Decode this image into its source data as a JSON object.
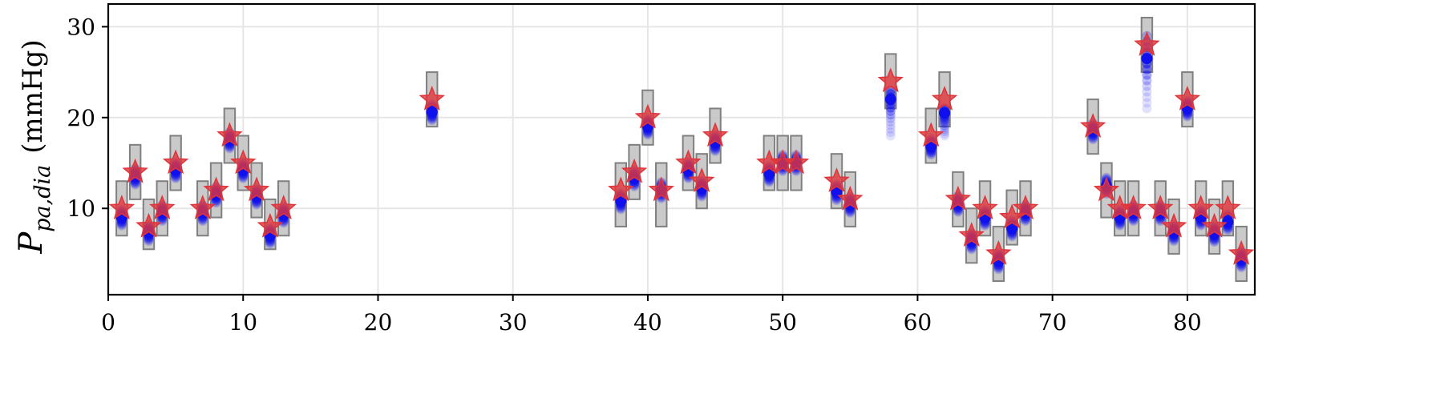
{
  "chart_data": {
    "type": "scatter",
    "ylabel": "P_{pa,dia} (mmHg)",
    "ylabel_parts": {
      "symbol": "P",
      "subscript": "pa,dia",
      "unit": "(mmHg)"
    },
    "xlim": [
      0,
      85
    ],
    "ylim": [
      0.5,
      32.5
    ],
    "xticks": [
      0,
      10,
      20,
      30,
      40,
      50,
      60,
      70,
      80
    ],
    "yticks": [
      10,
      20,
      30
    ],
    "grid": true,
    "legend": "none",
    "colors": {
      "observed_star": "#e0353a",
      "estimate_points": "#1010ee",
      "interval_box_fill": "#c4c4c4",
      "interval_box_edge": "#808080",
      "grid": "#e6e6e6"
    },
    "points": [
      {
        "x": 1,
        "observed": 10,
        "estimate": 9,
        "box": [
          7,
          13
        ]
      },
      {
        "x": 2,
        "observed": 14,
        "estimate": 13.5,
        "box": [
          11,
          17
        ]
      },
      {
        "x": 3,
        "observed": 8,
        "estimate": 7.3,
        "box": [
          5.5,
          11
        ]
      },
      {
        "x": 4,
        "observed": 10,
        "estimate": 9.5,
        "box": [
          7,
          13
        ]
      },
      {
        "x": 5,
        "observed": 15,
        "estimate": 14.2,
        "box": [
          12,
          18
        ]
      },
      {
        "x": 7,
        "observed": 10,
        "estimate": 9.5,
        "box": [
          7,
          13
        ]
      },
      {
        "x": 8,
        "observed": 12,
        "estimate": 11.5,
        "box": [
          9,
          15
        ]
      },
      {
        "x": 9,
        "observed": 18,
        "estimate": 17.5,
        "box": [
          15,
          21
        ]
      },
      {
        "x": 10,
        "observed": 15,
        "estimate": 14.2,
        "box": [
          12,
          18
        ]
      },
      {
        "x": 11,
        "observed": 12,
        "estimate": 11.3,
        "box": [
          9,
          15
        ]
      },
      {
        "x": 12,
        "observed": 8,
        "estimate": 7,
        "box": [
          5.5,
          11
        ]
      },
      {
        "x": 13,
        "observed": 10,
        "estimate": 9.3,
        "box": [
          7,
          13
        ]
      },
      {
        "x": 24,
        "observed": 22,
        "estimate": 20.6,
        "box": [
          19,
          25
        ]
      },
      {
        "x": 38,
        "observed": 12,
        "estimate": 10.8,
        "box": [
          8,
          15
        ]
      },
      {
        "x": 39,
        "observed": 14,
        "estimate": 13.3,
        "box": [
          11,
          17
        ]
      },
      {
        "x": 40,
        "observed": 20,
        "estimate": 19,
        "box": [
          17,
          23
        ]
      },
      {
        "x": 41,
        "observed": 12,
        "estimate": 12,
        "box": [
          8,
          15
        ]
      },
      {
        "x": 43,
        "observed": 15,
        "estimate": 14.2,
        "box": [
          12,
          18
        ]
      },
      {
        "x": 44,
        "observed": 13,
        "estimate": 12.2,
        "box": [
          10,
          16
        ]
      },
      {
        "x": 45,
        "observed": 18,
        "estimate": 17.2,
        "box": [
          15,
          21
        ]
      },
      {
        "x": 49,
        "observed": 15,
        "estimate": 13.8,
        "box": [
          12,
          18
        ]
      },
      {
        "x": 50,
        "observed": 15,
        "estimate": 15,
        "box": [
          12,
          18
        ]
      },
      {
        "x": 51,
        "observed": 15,
        "estimate": 15,
        "box": [
          12,
          18
        ]
      },
      {
        "x": 54,
        "observed": 13,
        "estimate": 11.8,
        "box": [
          10,
          16
        ]
      },
      {
        "x": 55,
        "observed": 11,
        "estimate": 10.4,
        "box": [
          8,
          14
        ]
      },
      {
        "x": 58,
        "observed": 24,
        "estimate": 22,
        "box": [
          21,
          27
        ],
        "spread": [
          18,
          23
        ]
      },
      {
        "x": 61,
        "observed": 18,
        "estimate": 16.8,
        "box": [
          15,
          21
        ]
      },
      {
        "x": 62,
        "observed": 22,
        "estimate": 20.5,
        "box": [
          19,
          25
        ],
        "spread": [
          18,
          21
        ]
      },
      {
        "x": 63,
        "observed": 11,
        "estimate": 10.5,
        "box": [
          8,
          14
        ]
      },
      {
        "x": 64,
        "observed": 7,
        "estimate": 6.4,
        "box": [
          4,
          10
        ]
      },
      {
        "x": 65,
        "observed": 10,
        "estimate": 9,
        "box": [
          7,
          13
        ]
      },
      {
        "x": 66,
        "observed": 5,
        "estimate": 4.2,
        "box": [
          2,
          8
        ]
      },
      {
        "x": 67,
        "observed": 9,
        "estimate": 7.8,
        "box": [
          6,
          12
        ]
      },
      {
        "x": 68,
        "observed": 10,
        "estimate": 9.5,
        "box": [
          7,
          13
        ]
      },
      {
        "x": 73,
        "observed": 19,
        "estimate": 18.5,
        "box": [
          16,
          22
        ]
      },
      {
        "x": 74,
        "observed": 12,
        "estimate": 12.5,
        "box": [
          9,
          15
        ]
      },
      {
        "x": 75,
        "observed": 10,
        "estimate": 9,
        "box": [
          7,
          13
        ]
      },
      {
        "x": 76,
        "observed": 10,
        "estimate": 9.5,
        "box": [
          7,
          13
        ]
      },
      {
        "x": 77,
        "observed": 28,
        "estimate": 26.5,
        "box": [
          25,
          31
        ],
        "spread": [
          21,
          29
        ]
      },
      {
        "x": 78,
        "observed": 10,
        "estimate": 9.5,
        "box": [
          7,
          13
        ]
      },
      {
        "x": 79,
        "observed": 8,
        "estimate": 7.3,
        "box": [
          5,
          11
        ]
      },
      {
        "x": 80,
        "observed": 22,
        "estimate": 21,
        "box": [
          19,
          25
        ]
      },
      {
        "x": 81,
        "observed": 10,
        "estimate": 9,
        "box": [
          7,
          13
        ]
      },
      {
        "x": 82,
        "observed": 8,
        "estimate": 7.2,
        "box": [
          5,
          11
        ]
      },
      {
        "x": 83,
        "observed": 10,
        "estimate": 8.5,
        "box": [
          7,
          13
        ]
      },
      {
        "x": 84,
        "observed": 5,
        "estimate": 4.4,
        "box": [
          2,
          8
        ]
      }
    ]
  }
}
